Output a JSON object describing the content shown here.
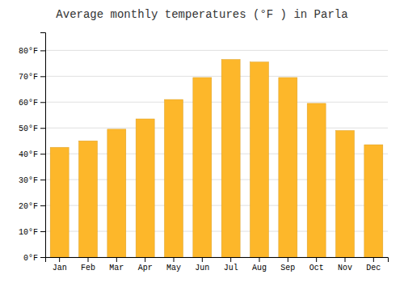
{
  "chart_data": {
    "type": "bar",
    "title": "Average monthly temperatures (°F ) in Parla",
    "categories": [
      "Jan",
      "Feb",
      "Mar",
      "Apr",
      "May",
      "Jun",
      "Jul",
      "Aug",
      "Sep",
      "Oct",
      "Nov",
      "Dec"
    ],
    "values": [
      42.5,
      45.0,
      49.5,
      53.5,
      61.0,
      69.5,
      76.5,
      75.5,
      69.5,
      59.5,
      49.0,
      43.5
    ],
    "color": "#FDB72A",
    "ylim": [
      0,
      87
    ],
    "yticks": [
      {
        "value": 0,
        "label": "0°F"
      },
      {
        "value": 10,
        "label": "10°F"
      },
      {
        "value": 20,
        "label": "20°F"
      },
      {
        "value": 30,
        "label": "30°F"
      },
      {
        "value": 40,
        "label": "40°F"
      },
      {
        "value": 50,
        "label": "50°F"
      },
      {
        "value": 60,
        "label": "60°F"
      },
      {
        "value": 70,
        "label": "70°F"
      },
      {
        "value": 80,
        "label": "80°F"
      }
    ],
    "grid": true
  }
}
